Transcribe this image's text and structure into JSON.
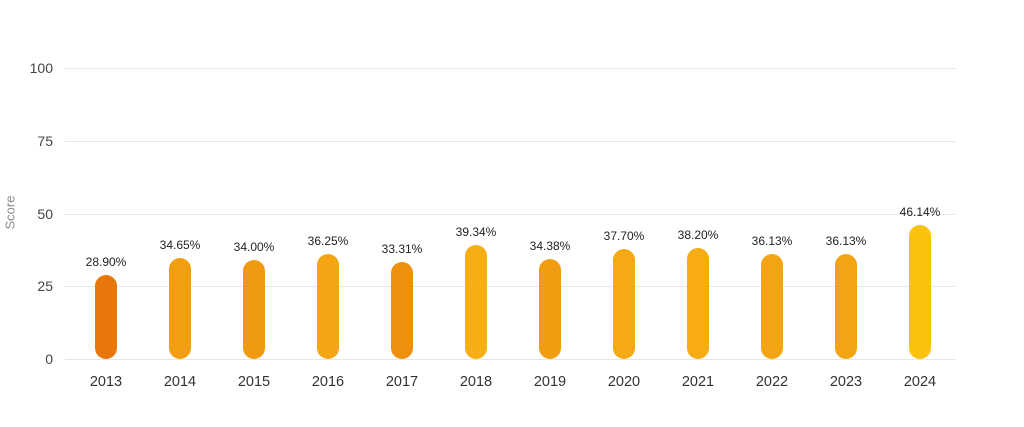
{
  "chart_data": {
    "type": "bar",
    "title": "",
    "xlabel": "",
    "ylabel": "Score",
    "ylim": [
      0,
      100
    ],
    "y_ticks": [
      0,
      25,
      50,
      75,
      100
    ],
    "grid": true,
    "legend": "none",
    "categories": [
      "2013",
      "2014",
      "2015",
      "2016",
      "2017",
      "2018",
      "2019",
      "2020",
      "2021",
      "2022",
      "2023",
      "2024"
    ],
    "values": [
      28.9,
      34.65,
      34.0,
      36.25,
      33.31,
      39.34,
      34.38,
      37.7,
      38.2,
      36.13,
      36.13,
      46.14
    ],
    "value_labels": [
      "28.90%",
      "34.65%",
      "34.00%",
      "36.25%",
      "33.31%",
      "39.34%",
      "34.38%",
      "37.70%",
      "38.20%",
      "36.13%",
      "36.13%",
      "46.14%"
    ],
    "bar_colors": [
      "#E8770B",
      "#F19E11",
      "#F09A11",
      "#F3A513",
      "#EE8F0F",
      "#F6AF12",
      "#F19D11",
      "#F5AA13",
      "#F6AC12",
      "#F3A413",
      "#F3A413",
      "#F9C20D"
    ],
    "colors": {
      "gridline": "#e6e6e6",
      "tick_label": "#444444",
      "axis_title": "#8c8c8c",
      "value_label": "#222222",
      "category_label": "#333333",
      "background": "#ffffff"
    }
  }
}
